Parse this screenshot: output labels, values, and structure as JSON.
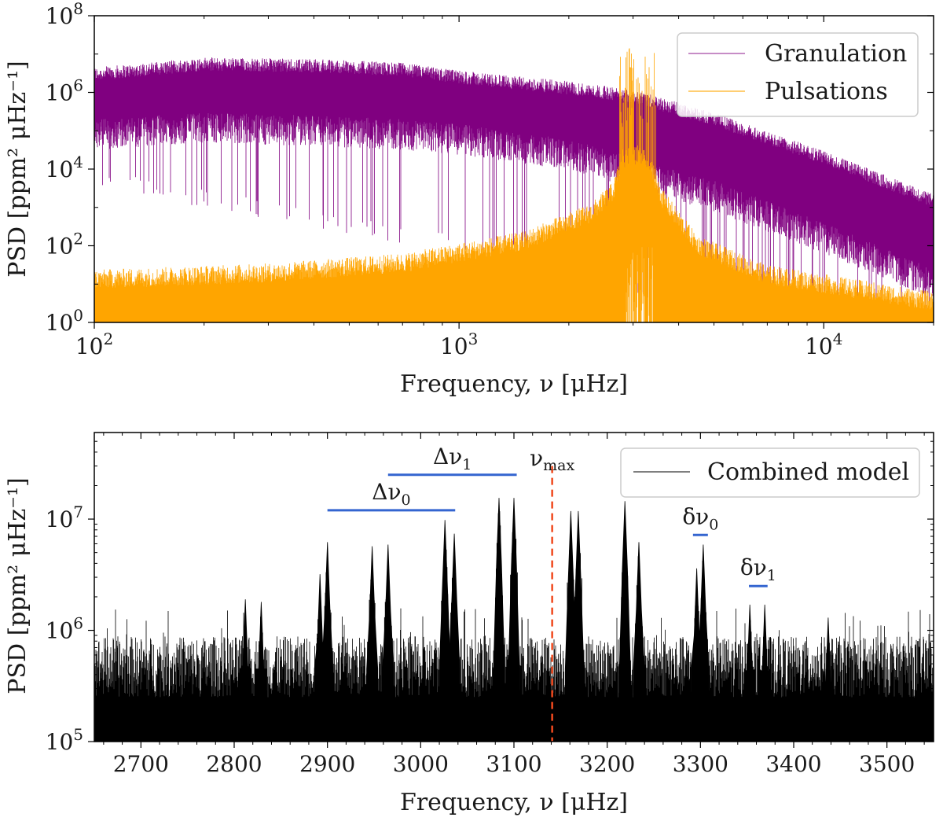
{
  "chart_data": [
    {
      "type": "line",
      "title": "",
      "xscale": "log",
      "yscale": "log",
      "xlim": [
        100,
        20000
      ],
      "ylim": [
        1,
        100000000
      ],
      "xlabel": "Frequency, ν [μHz]",
      "ylabel": "PSD [ppm² μHz⁻¹]",
      "x_ticks": [
        {
          "value": 100,
          "base": "10",
          "exp": "2"
        },
        {
          "value": 1000,
          "base": "10",
          "exp": "3"
        },
        {
          "value": 10000,
          "base": "10",
          "exp": "4"
        }
      ],
      "y_ticks": [
        {
          "value": 1,
          "base": "10",
          "exp": "0"
        },
        {
          "value": 100,
          "base": "10",
          "exp": "2"
        },
        {
          "value": 10000,
          "base": "10",
          "exp": "4"
        },
        {
          "value": 1000000,
          "base": "10",
          "exp": "6"
        },
        {
          "value": 100000000,
          "base": "10",
          "exp": "8"
        }
      ],
      "legend_position": "top-right",
      "series": [
        {
          "name": "Granulation",
          "color": "#800080",
          "envelope_upper": [
            [
              100,
              3000000
            ],
            [
              200,
              5500000
            ],
            [
              400,
              5000000
            ],
            [
              700,
              4000000
            ],
            [
              1000,
              2500000
            ],
            [
              2000,
              1300000
            ],
            [
              3000,
              800000
            ],
            [
              5000,
              200000
            ],
            [
              10000,
              20000
            ],
            [
              20000,
              1500
            ]
          ],
          "envelope_lower": [
            [
              100,
              200000
            ],
            [
              200,
              300000
            ],
            [
              400,
              250000
            ],
            [
              700,
              200000
            ],
            [
              1000,
              150000
            ],
            [
              2000,
              60000
            ],
            [
              3000,
              20000
            ],
            [
              5000,
              5000
            ],
            [
              10000,
              400
            ],
            [
              20000,
              25
            ]
          ],
          "spike_min": [
            [
              100,
              3000
            ],
            [
              200,
              1000
            ],
            [
              400,
              300
            ],
            [
              700,
              100
            ],
            [
              1000,
              60
            ],
            [
              2000,
              20
            ],
            [
              3000,
              5
            ],
            [
              5000,
              1
            ],
            [
              10000,
              1
            ],
            [
              20000,
              1
            ]
          ]
        },
        {
          "name": "Pulsations",
          "color": "#FFA500",
          "envelope_upper": [
            [
              100,
              15
            ],
            [
              300,
              22
            ],
            [
              700,
              40
            ],
            [
              1500,
              150
            ],
            [
              2300,
              800
            ],
            [
              2650,
              3000
            ],
            [
              2800,
              20000
            ],
            [
              3000,
              25000
            ],
            [
              3150,
              28000
            ],
            [
              3350,
              15000
            ],
            [
              3600,
              2000
            ],
            [
              4500,
              120
            ],
            [
              7000,
              20
            ],
            [
              20000,
              4
            ]
          ],
          "envelope_lower": [
            [
              100,
              1
            ],
            [
              20000,
              1
            ]
          ],
          "peak_band": [
            2750,
            3500
          ],
          "peak_max": 15000000
        }
      ]
    },
    {
      "type": "line",
      "title": "",
      "xscale": "linear",
      "yscale": "log",
      "xlim": [
        2650,
        3550
      ],
      "ylim": [
        100000,
        60000000
      ],
      "xlabel": "Frequency, ν [μHz]",
      "ylabel": "PSD [ppm² μHz⁻¹]",
      "x_ticks": [
        2700,
        2800,
        2900,
        3000,
        3100,
        3200,
        3300,
        3400,
        3500
      ],
      "y_ticks": [
        {
          "value": 100000,
          "base": "10",
          "exp": "5"
        },
        {
          "value": 1000000,
          "base": "10",
          "exp": "6"
        },
        {
          "value": 10000000,
          "base": "10",
          "exp": "7"
        }
      ],
      "legend_position": "top-right",
      "series": [
        {
          "name": "Combined model",
          "color": "#000000",
          "background_level": 500000,
          "peaks": [
            {
              "freq": 2812,
              "height": 1900000
            },
            {
              "freq": 2829,
              "height": 1800000
            },
            {
              "freq": 2892,
              "height": 3200000
            },
            {
              "freq": 2900,
              "height": 6200000
            },
            {
              "freq": 2948,
              "height": 5700000
            },
            {
              "freq": 2965,
              "height": 5900000
            },
            {
              "freq": 3026,
              "height": 9800000
            },
            {
              "freq": 3036,
              "height": 7400000
            },
            {
              "freq": 3084,
              "height": 15500000
            },
            {
              "freq": 3100,
              "height": 15500000
            },
            {
              "freq": 3161,
              "height": 11800000
            },
            {
              "freq": 3169,
              "height": 11800000
            },
            {
              "freq": 3219,
              "height": 14500000
            },
            {
              "freq": 3234,
              "height": 6200000
            },
            {
              "freq": 3296,
              "height": 3600000
            },
            {
              "freq": 3303,
              "height": 5900000
            },
            {
              "freq": 3353,
              "height": 1700000
            },
            {
              "freq": 3369,
              "height": 1700000
            },
            {
              "freq": 3437,
              "height": 1300000
            }
          ]
        }
      ],
      "annotations": [
        {
          "label": "Δν",
          "sub": "0",
          "x_start": 2900,
          "x_end": 3037,
          "y": 12000000,
          "color": "#3465D0"
        },
        {
          "label": "Δν",
          "sub": "1",
          "x_start": 2965,
          "x_end": 3103,
          "y": 25000000,
          "color": "#3465D0"
        },
        {
          "label": "δν",
          "sub": "0",
          "x_start": 3292,
          "x_end": 3308,
          "y": 7200000,
          "color": "#3465D0"
        },
        {
          "label": "δν",
          "sub": "1",
          "x_start": 3352,
          "x_end": 3372,
          "y": 2500000,
          "color": "#3465D0"
        }
      ],
      "vline": {
        "label": "ν",
        "sub": "max",
        "x": 3141,
        "color": "#F04A1E",
        "style": "dashed"
      }
    }
  ]
}
